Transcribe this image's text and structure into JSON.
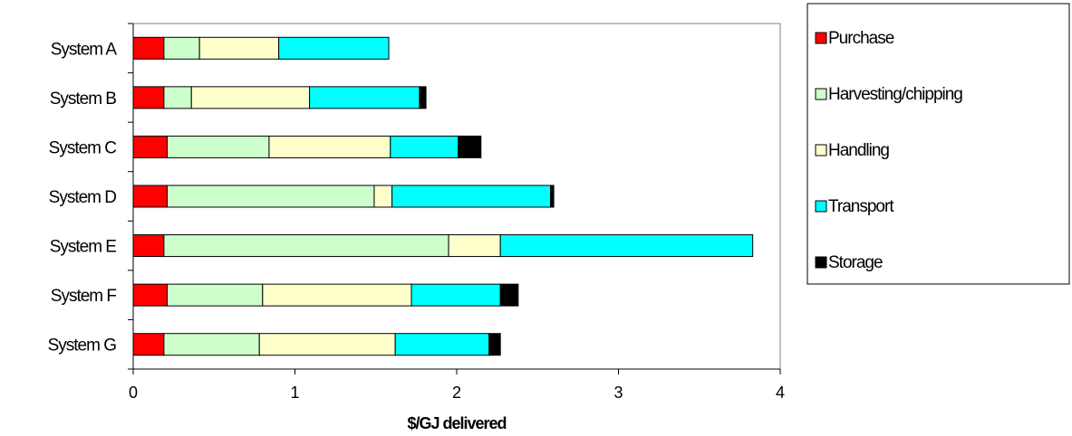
{
  "chart_data": {
    "type": "bar",
    "orientation": "horizontal",
    "stacked": true,
    "categories": [
      "System A",
      "System B",
      "System C",
      "System D",
      "System E",
      "System F",
      "System G"
    ],
    "series": [
      {
        "name": "Purchase",
        "color": "#ff0000",
        "values": [
          0.19,
          0.19,
          0.21,
          0.21,
          0.19,
          0.21,
          0.19
        ]
      },
      {
        "name": "Harvesting/chipping",
        "color": "#ccffcc",
        "values": [
          0.22,
          0.17,
          0.63,
          1.28,
          1.76,
          0.59,
          0.59
        ]
      },
      {
        "name": "Handling",
        "color": "#ffffcc",
        "values": [
          0.49,
          0.73,
          0.75,
          0.11,
          0.32,
          0.92,
          0.84
        ]
      },
      {
        "name": "Transport",
        "color": "#00ffff",
        "values": [
          0.68,
          0.68,
          0.42,
          0.98,
          1.56,
          0.55,
          0.58
        ]
      },
      {
        "name": "Storage",
        "color": "#000000",
        "values": [
          0,
          0.04,
          0.14,
          0.02,
          0,
          0.11,
          0.07
        ]
      }
    ],
    "xlabel": "$/GJ delivered",
    "ylabel": "",
    "title": "",
    "xlim": [
      0,
      4
    ],
    "xticks": [
      "0",
      "1",
      "2",
      "3",
      "4"
    ],
    "grid": false,
    "legend_position": "right"
  }
}
